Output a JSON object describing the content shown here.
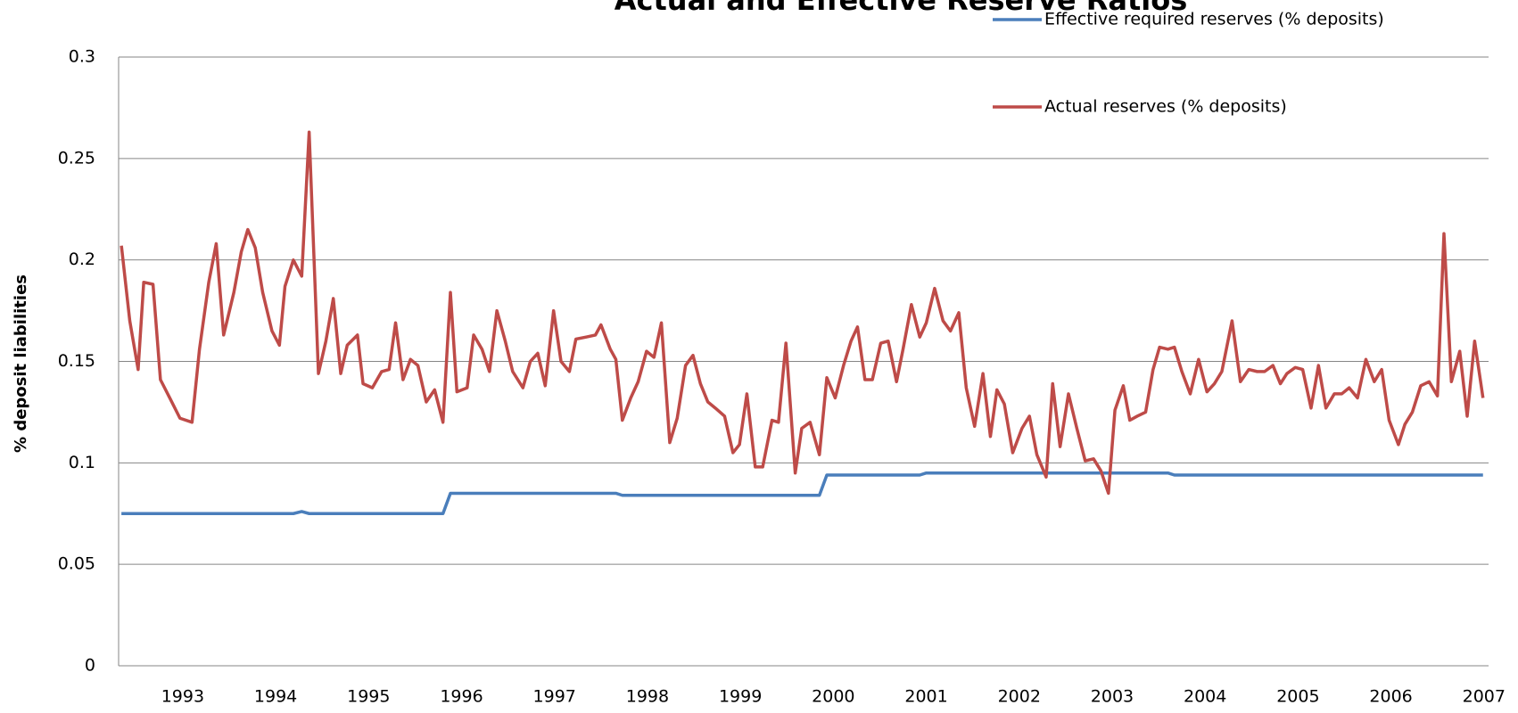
{
  "chart_data": {
    "type": "line",
    "title": "Actual and Effective Reserve Ratios",
    "y_label": "% deposit liabilities",
    "x": [
      1992.34,
      1992.43,
      1992.52,
      1992.58,
      1992.68,
      1992.76,
      1992.86,
      1992.97,
      1993.1,
      1993.18,
      1993.28,
      1993.36,
      1993.44,
      1993.55,
      1993.63,
      1993.7,
      1993.78,
      1993.86,
      1993.96,
      1994.04,
      1994.1,
      1994.19,
      1994.28,
      1994.36,
      1994.46,
      1994.54,
      1994.62,
      1994.7,
      1994.77,
      1994.88,
      1994.94,
      1995.04,
      1995.14,
      1995.22,
      1995.29,
      1995.37,
      1995.45,
      1995.53,
      1995.62,
      1995.71,
      1995.8,
      1995.88,
      1995.95,
      1996.06,
      1996.13,
      1996.22,
      1996.3,
      1996.38,
      1996.47,
      1996.55,
      1996.66,
      1996.74,
      1996.82,
      1996.9,
      1996.99,
      1997.07,
      1997.16,
      1997.23,
      1997.34,
      1997.44,
      1997.5,
      1997.6,
      1997.66,
      1997.73,
      1997.82,
      1997.9,
      1997.99,
      1998.07,
      1998.15,
      1998.24,
      1998.32,
      1998.41,
      1998.49,
      1998.57,
      1998.65,
      1998.73,
      1998.83,
      1998.92,
      1998.99,
      1999.07,
      1999.16,
      1999.24,
      1999.34,
      1999.41,
      1999.49,
      1999.59,
      1999.66,
      1999.75,
      1999.85,
      1999.93,
      2000.02,
      2000.11,
      2000.19,
      2000.26,
      2000.34,
      2000.42,
      2000.51,
      2000.59,
      2000.68,
      2000.75,
      2000.84,
      2000.93,
      2001.0,
      2001.09,
      2001.18,
      2001.26,
      2001.35,
      2001.43,
      2001.52,
      2001.61,
      2001.69,
      2001.76,
      2001.84,
      2001.93,
      2002.03,
      2002.11,
      2002.19,
      2002.29,
      2002.36,
      2002.44,
      2002.53,
      2002.62,
      2002.71,
      2002.8,
      2002.88,
      2002.96,
      2003.03,
      2003.12,
      2003.19,
      2003.27,
      2003.36,
      2003.44,
      2003.51,
      2003.6,
      2003.67,
      2003.75,
      2003.84,
      2003.93,
      2004.02,
      2004.1,
      2004.18,
      2004.29,
      2004.38,
      2004.47,
      2004.56,
      2004.64,
      2004.73,
      2004.81,
      2004.88,
      2004.97,
      2005.05,
      2005.14,
      2005.22,
      2005.3,
      2005.39,
      2005.47,
      2005.55,
      2005.64,
      2005.73,
      2005.82,
      2005.9,
      2005.98,
      2006.08,
      2006.15,
      2006.23,
      2006.32,
      2006.41,
      2006.5,
      2006.57,
      2006.65,
      2006.74,
      2006.82,
      2006.9,
      2006.99
    ],
    "series": [
      {
        "name": "Effective required reserves (% deposits)",
        "color": "#4a7ebb",
        "values": [
          0.075,
          0.075,
          0.075,
          0.075,
          0.075,
          0.075,
          0.075,
          0.075,
          0.075,
          0.075,
          0.075,
          0.075,
          0.075,
          0.075,
          0.075,
          0.075,
          0.075,
          0.075,
          0.075,
          0.075,
          0.075,
          0.075,
          0.076,
          0.075,
          0.075,
          0.075,
          0.075,
          0.075,
          0.075,
          0.075,
          0.075,
          0.075,
          0.075,
          0.075,
          0.075,
          0.075,
          0.075,
          0.075,
          0.075,
          0.075,
          0.075,
          0.085,
          0.085,
          0.085,
          0.085,
          0.085,
          0.085,
          0.085,
          0.085,
          0.085,
          0.085,
          0.085,
          0.085,
          0.085,
          0.085,
          0.085,
          0.085,
          0.085,
          0.085,
          0.085,
          0.085,
          0.085,
          0.085,
          0.084,
          0.084,
          0.084,
          0.084,
          0.084,
          0.084,
          0.084,
          0.084,
          0.084,
          0.084,
          0.084,
          0.084,
          0.084,
          0.084,
          0.084,
          0.084,
          0.084,
          0.084,
          0.084,
          0.084,
          0.084,
          0.084,
          0.084,
          0.084,
          0.084,
          0.084,
          0.094,
          0.094,
          0.094,
          0.094,
          0.094,
          0.094,
          0.094,
          0.094,
          0.094,
          0.094,
          0.094,
          0.094,
          0.094,
          0.095,
          0.095,
          0.095,
          0.095,
          0.095,
          0.095,
          0.095,
          0.095,
          0.095,
          0.095,
          0.095,
          0.095,
          0.095,
          0.095,
          0.095,
          0.095,
          0.095,
          0.095,
          0.095,
          0.095,
          0.095,
          0.095,
          0.095,
          0.095,
          0.095,
          0.095,
          0.095,
          0.095,
          0.095,
          0.095,
          0.095,
          0.095,
          0.094,
          0.094,
          0.094,
          0.094,
          0.094,
          0.094,
          0.094,
          0.094,
          0.094,
          0.094,
          0.094,
          0.094,
          0.094,
          0.094,
          0.094,
          0.094,
          0.094,
          0.094,
          0.094,
          0.094,
          0.094,
          0.094,
          0.094,
          0.094,
          0.094,
          0.094,
          0.094,
          0.094,
          0.094,
          0.094,
          0.094,
          0.094,
          0.094,
          0.094,
          0.094,
          0.094,
          0.094,
          0.094,
          0.094,
          0.094
        ]
      },
      {
        "name": "Actual reserves (% deposits)",
        "color": "#be4b48",
        "values": [
          0.207,
          0.17,
          0.146,
          0.189,
          0.188,
          0.141,
          0.132,
          0.122,
          0.12,
          0.156,
          0.189,
          0.208,
          0.163,
          0.184,
          0.204,
          0.215,
          0.206,
          0.184,
          0.165,
          0.158,
          0.187,
          0.2,
          0.192,
          0.263,
          0.144,
          0.16,
          0.181,
          0.144,
          0.158,
          0.163,
          0.139,
          0.137,
          0.145,
          0.146,
          0.169,
          0.141,
          0.151,
          0.148,
          0.13,
          0.136,
          0.12,
          0.184,
          0.135,
          0.137,
          0.163,
          0.156,
          0.145,
          0.175,
          0.16,
          0.145,
          0.137,
          0.15,
          0.154,
          0.138,
          0.175,
          0.15,
          0.145,
          0.161,
          0.162,
          0.163,
          0.168,
          0.156,
          0.151,
          0.121,
          0.132,
          0.14,
          0.155,
          0.152,
          0.169,
          0.11,
          0.122,
          0.148,
          0.153,
          0.139,
          0.13,
          0.127,
          0.123,
          0.105,
          0.109,
          0.134,
          0.098,
          0.098,
          0.121,
          0.12,
          0.159,
          0.095,
          0.117,
          0.12,
          0.104,
          0.142,
          0.132,
          0.148,
          0.16,
          0.167,
          0.141,
          0.141,
          0.159,
          0.16,
          0.14,
          0.156,
          0.178,
          0.162,
          0.169,
          0.186,
          0.17,
          0.165,
          0.174,
          0.137,
          0.118,
          0.144,
          0.113,
          0.136,
          0.129,
          0.105,
          0.117,
          0.123,
          0.104,
          0.093,
          0.139,
          0.108,
          0.134,
          0.117,
          0.101,
          0.102,
          0.096,
          0.085,
          0.126,
          0.138,
          0.121,
          0.123,
          0.125,
          0.146,
          0.157,
          0.156,
          0.157,
          0.145,
          0.134,
          0.151,
          0.135,
          0.139,
          0.145,
          0.17,
          0.14,
          0.146,
          0.145,
          0.145,
          0.148,
          0.139,
          0.144,
          0.147,
          0.146,
          0.127,
          0.148,
          0.127,
          0.134,
          0.134,
          0.137,
          0.132,
          0.151,
          0.14,
          0.146,
          0.121,
          0.109,
          0.119,
          0.125,
          0.138,
          0.14,
          0.133,
          0.213,
          0.14,
          0.155,
          0.123,
          0.16,
          0.132
        ]
      }
    ],
    "xlim": [
      1992.31,
      2007.05
    ],
    "xticks": [
      1993,
      1994,
      1995,
      1996,
      1997,
      1998,
      1999,
      2000,
      2001,
      2002,
      2003,
      2004,
      2005,
      2006,
      2007
    ],
    "ylim": [
      0,
      0.3
    ],
    "yticks": [
      0,
      0.05,
      0.1,
      0.15,
      0.2,
      0.25,
      0.3
    ],
    "grid": true
  }
}
